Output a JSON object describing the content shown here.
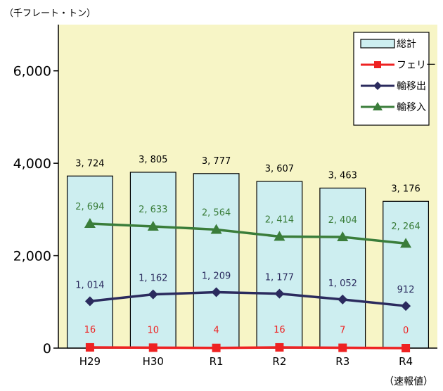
{
  "chart_data": {
    "type": "bar",
    "unit_label": "（千フレート・トン）",
    "note": "（速報値）",
    "categories": [
      "H29",
      "H30",
      "R1",
      "R2",
      "R3",
      "R4"
    ],
    "ylim": [
      0,
      7000
    ],
    "yticks": [
      0,
      2000,
      4000,
      6000
    ],
    "ytick_labels": [
      "0",
      "2,000",
      "4,000",
      "6,000"
    ],
    "grid": false,
    "legend_position": "top-right",
    "series": [
      {
        "name": "総計",
        "kind": "bar",
        "color": "#cdeef0",
        "stroke": "#000000",
        "values": [
          3724,
          3805,
          3777,
          3607,
          3463,
          3176
        ],
        "labels": [
          "3, 724",
          "3, 805",
          "3, 777",
          "3, 607",
          "3, 463",
          "3, 176"
        ],
        "label_color": "#000000"
      },
      {
        "name": "フェリー",
        "kind": "line",
        "marker": "square",
        "color": "#ee2222",
        "values": [
          16,
          10,
          4,
          16,
          7,
          0
        ],
        "labels": [
          "16",
          "10",
          "4",
          "16",
          "7",
          "0"
        ],
        "label_color": "#ee2222"
      },
      {
        "name": "輸移出",
        "kind": "line",
        "marker": "diamond",
        "color": "#2b2b5e",
        "values": [
          1014,
          1162,
          1209,
          1177,
          1052,
          912
        ],
        "labels": [
          "1, 014",
          "1, 162",
          "1, 209",
          "1, 177",
          "1, 052",
          "912"
        ],
        "label_color": "#2b2b5e"
      },
      {
        "name": "輸移入",
        "kind": "line",
        "marker": "triangle",
        "color": "#3a7d3a",
        "values": [
          2694,
          2633,
          2564,
          2414,
          2404,
          2264
        ],
        "labels": [
          "2, 694",
          "2, 633",
          "2, 564",
          "2, 414",
          "2, 404",
          "2, 264"
        ],
        "label_color": "#3a7d3a"
      }
    ],
    "colors": {
      "plot_background": "#f7f5c6",
      "axis": "#000000"
    }
  }
}
